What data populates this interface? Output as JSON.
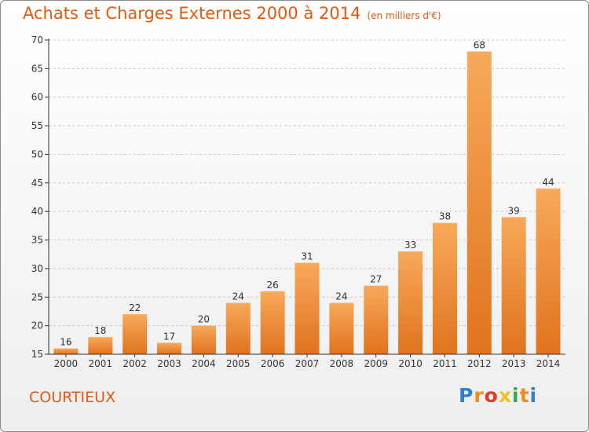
{
  "header": {
    "title": "Achats et Charges Externes 2000 à 2014",
    "subtitle": "(en milliers d'€)"
  },
  "footer": {
    "town": "COURTIEUX",
    "logo_letters": [
      "P",
      "r",
      "o",
      "x",
      "i",
      "t",
      "i"
    ],
    "logo_colors": [
      "#2f7fd0",
      "#f08a1c",
      "#e23b2a",
      "#f0c419",
      "#3aa64a",
      "#f08a1c",
      "#2f7fd0"
    ]
  },
  "colors": {
    "bar_light": "#f7a95a",
    "bar_dark": "#e0731e",
    "grid": "#c8c8c8",
    "axis": "#333333",
    "accent": "#e05a12"
  },
  "chart_data": {
    "type": "bar",
    "title": "Achats et Charges Externes 2000 à 2014",
    "subtitle": "(en milliers d'€)",
    "xlabel": "",
    "ylabel": "",
    "categories": [
      "2000",
      "2001",
      "2002",
      "2003",
      "2004",
      "2005",
      "2006",
      "2007",
      "2008",
      "2009",
      "2010",
      "2011",
      "2012",
      "2013",
      "2014"
    ],
    "values": [
      16,
      18,
      22,
      17,
      20,
      24,
      26,
      31,
      24,
      27,
      33,
      38,
      68,
      39,
      44
    ],
    "ylim": [
      15,
      70
    ],
    "yticks": [
      15,
      20,
      25,
      30,
      35,
      40,
      45,
      50,
      55,
      60,
      65,
      70
    ],
    "grid": true,
    "legend": "none"
  }
}
